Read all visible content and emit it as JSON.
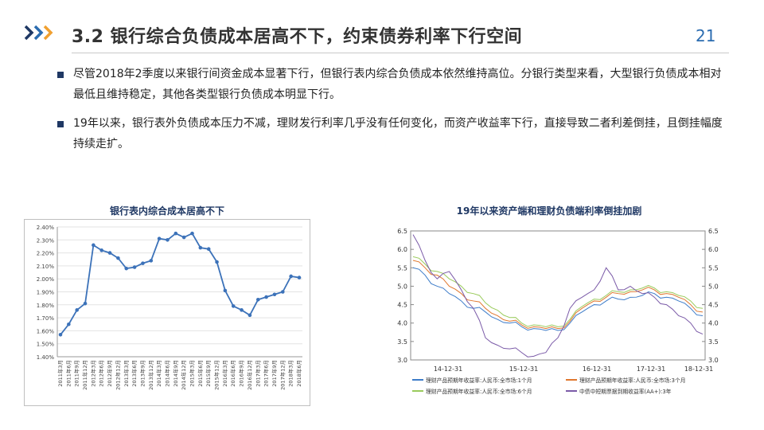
{
  "header": {
    "title": "3.2 银行综合负债成本居高不下，约束债券利率下行空间",
    "page_number": "21"
  },
  "bullets": [
    "尽管2018年2季度以来银行间资金成本显著下行，但银行表内综合负债成本依然维持高位。分银行类型来看，大型银行负债成本相对最低且维持稳定，其他各类型银行负债成本明显下行。",
    "19年以来，银行表外负债成本压力不减，理财发行利率几乎没有任何变化，而资产收益率下行，直接导致二者利差倒挂，且倒挂幅度持续走扩。"
  ],
  "chart_data": [
    {
      "type": "line",
      "title": "银行表内综合成本居高不下",
      "categories": [
        "2011年3月",
        "2011年6月",
        "2011年9月",
        "2011年12月",
        "2012年3月",
        "2012年6月",
        "2012年9月",
        "2012年12月",
        "2013年3月",
        "2013年6月",
        "2013年9月",
        "2013年12月",
        "2014年3月",
        "2014年6月",
        "2014年9月",
        "2014年12月",
        "2015年3月",
        "2015年6月",
        "2015年9月",
        "2015年12月",
        "2016年3月",
        "2016年6月",
        "2016年9月",
        "2016年12月",
        "2017年3月",
        "2017年6月",
        "2017年9月",
        "2017年12月",
        "2018年3月",
        "2018年6月"
      ],
      "values": [
        1.57,
        1.65,
        1.76,
        1.81,
        2.26,
        2.22,
        2.2,
        2.16,
        2.08,
        2.09,
        2.12,
        2.14,
        2.31,
        2.3,
        2.35,
        2.32,
        2.35,
        2.24,
        2.23,
        2.13,
        1.91,
        1.79,
        1.76,
        1.72,
        1.84,
        1.86,
        1.88,
        1.9,
        2.02,
        2.01
      ],
      "ylim": [
        1.4,
        2.4
      ],
      "yticks": [
        "1.40%",
        "1.50%",
        "1.60%",
        "1.70%",
        "1.80%",
        "1.90%",
        "2.00%",
        "2.10%",
        "2.20%",
        "2.30%",
        "2.40%"
      ],
      "color": "#3c72b9"
    },
    {
      "type": "line",
      "title": "19年以来资产端和理财负债端利率倒挂加剧",
      "x_ticks": [
        "14-12-31",
        "15-12-31",
        "16-12-31",
        "17-12-31",
        "18-12-31"
      ],
      "ylim_left": [
        3.0,
        6.5
      ],
      "ylim_right": [
        3.0,
        6.5
      ],
      "yticks_left": [
        "3.0",
        "3.5",
        "4.0",
        "4.5",
        "5.0",
        "5.5",
        "6.0",
        "6.5"
      ],
      "yticks_right": [
        "3.0",
        "3.5",
        "4.0",
        "4.5",
        "5.0",
        "5.5",
        "6.0",
        "6.5"
      ],
      "series": [
        {
          "name": "理财产品预期年收益率:人民币:全市场:1个月",
          "color": "#3d7cc9",
          "values": [
            5.5,
            5.3,
            5.0,
            4.8,
            4.6,
            4.4,
            4.3,
            4.1,
            4.0,
            3.9,
            3.85,
            3.8,
            3.8,
            4.0,
            4.3,
            4.5,
            4.6,
            4.65,
            4.7,
            4.75,
            4.8,
            4.7,
            4.6,
            4.4,
            4.2
          ]
        },
        {
          "name": "理财产品预期年收益率:人民币:全市场:3个月",
          "color": "#e0772e",
          "values": [
            5.7,
            5.5,
            5.3,
            5.0,
            4.8,
            4.6,
            4.4,
            4.2,
            4.05,
            3.95,
            3.9,
            3.85,
            3.85,
            4.05,
            4.4,
            4.6,
            4.7,
            4.8,
            4.85,
            4.9,
            4.9,
            4.8,
            4.7,
            4.5,
            4.3
          ]
        },
        {
          "name": "理财产品预期年收益率:人民币:全市场:6个月",
          "color": "#9acb5c",
          "values": [
            5.8,
            5.6,
            5.4,
            5.2,
            5.0,
            4.8,
            4.55,
            4.35,
            4.15,
            4.0,
            3.95,
            3.9,
            3.9,
            4.1,
            4.45,
            4.65,
            4.75,
            4.85,
            4.9,
            4.95,
            4.95,
            4.85,
            4.75,
            4.6,
            4.4
          ]
        },
        {
          "name": "中债中短期票据到期收益率(AA+):3年",
          "color": "#7b5ba8",
          "values": [
            6.4,
            5.7,
            5.2,
            5.4,
            4.9,
            4.4,
            3.6,
            3.4,
            3.3,
            3.2,
            3.1,
            3.2,
            3.6,
            4.4,
            4.7,
            4.9,
            5.5,
            4.9,
            5.0,
            4.8,
            4.7,
            4.5,
            4.2,
            4.0,
            3.7
          ]
        }
      ]
    }
  ]
}
